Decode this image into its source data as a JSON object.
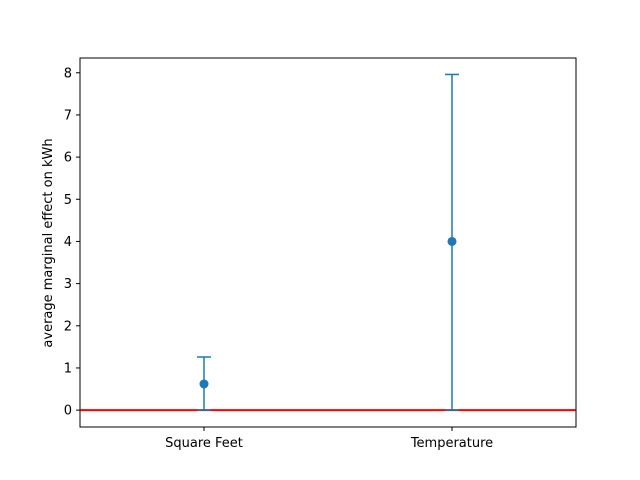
{
  "chart_data": {
    "type": "errorbar",
    "title": "",
    "xlabel": "",
    "ylabel": "average marginal effect on kWh",
    "categories": [
      "Square Feet",
      "Temperature"
    ],
    "series": [
      {
        "points": [
          {
            "category": "Square Feet",
            "value": 0.62,
            "lower": 0.0,
            "upper": 1.26
          },
          {
            "category": "Temperature",
            "value": 4.0,
            "lower": 0.0,
            "upper": 7.96
          }
        ],
        "color": "#1f77b4"
      }
    ],
    "reference_line": {
      "y": 0,
      "color": "#ff0000"
    },
    "ylim": [
      -0.4,
      8.35
    ],
    "yticks": [
      "0",
      "1",
      "2",
      "3",
      "4",
      "5",
      "6",
      "7",
      "8"
    ],
    "grid": false,
    "legend": "none"
  }
}
